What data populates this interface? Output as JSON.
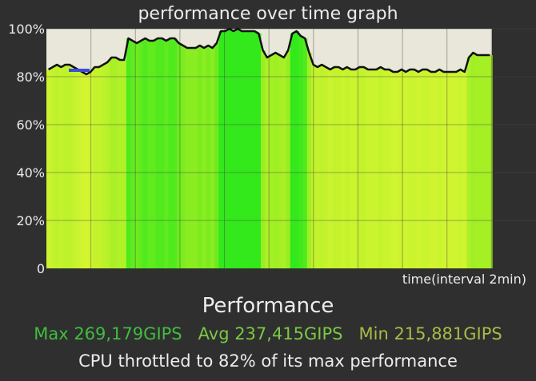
{
  "graph": {
    "title": "performance over time graph",
    "xlabel": "time(interval 2min)",
    "y_ticks": [
      "100%",
      "80%",
      "60%",
      "40%",
      "20%",
      "0"
    ]
  },
  "summary": {
    "heading": "Performance",
    "max_label": "Max 269,179GIPS",
    "avg_label": "Avg 237,415GIPS",
    "min_label": "Min 215,881GIPS",
    "throttle_text": "CPU throttled to 82% of its max performance"
  },
  "colors": {
    "background": "#2f2f2f",
    "plot_background": "#e9e7da",
    "line": "#111111",
    "bar_high": "#33e81b",
    "bar_mid": "#99ee22",
    "bar_low": "#d6f531",
    "max_text": "#3fbd3f",
    "avg_text": "#7ac942",
    "min_text": "#aab945"
  },
  "chart_data": {
    "type": "area",
    "ylim": [
      0,
      100
    ],
    "grid": true,
    "values": [
      83,
      84,
      85,
      84,
      85,
      85,
      84,
      83,
      82,
      81,
      82,
      84,
      84,
      85,
      86,
      88,
      88,
      87,
      87,
      96,
      95,
      94,
      95,
      96,
      95,
      95,
      96,
      96,
      95,
      96,
      96,
      94,
      93,
      92,
      92,
      92,
      93,
      92,
      93,
      92,
      94,
      99,
      99,
      100,
      99,
      100,
      99,
      99,
      99,
      99,
      98,
      91,
      88,
      89,
      90,
      89,
      88,
      91,
      98,
      99,
      97,
      96,
      90,
      85,
      84,
      85,
      84,
      83,
      84,
      84,
      83,
      84,
      83,
      83,
      84,
      84,
      83,
      83,
      83,
      84,
      83,
      83,
      82,
      82,
      83,
      82,
      83,
      83,
      82,
      83,
      83,
      82,
      82,
      83,
      82,
      82,
      82,
      82,
      83,
      82,
      88,
      90,
      89,
      89,
      89,
      89
    ]
  }
}
